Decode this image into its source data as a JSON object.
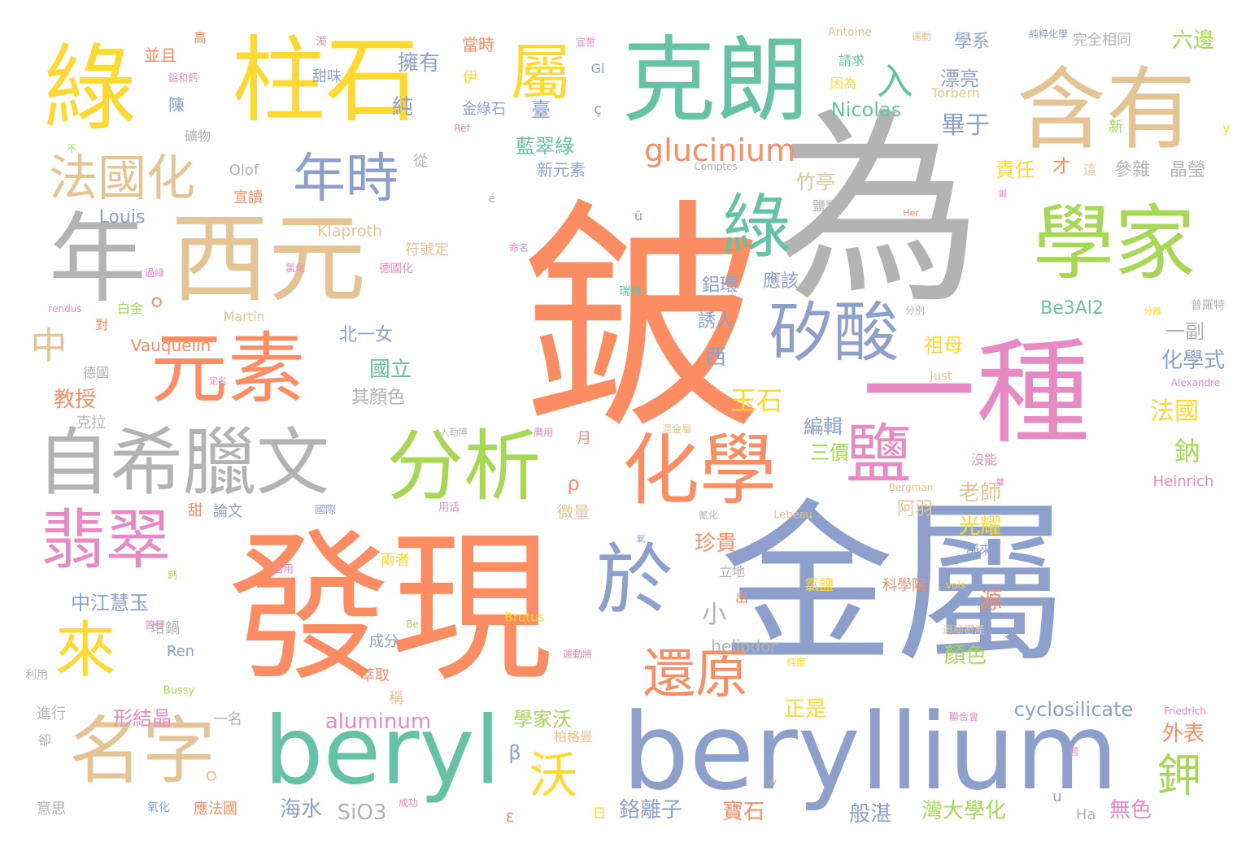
{
  "palette": {
    "orange": "#fc8d62",
    "gray": "#b3b3b3",
    "blue": "#8da0cb",
    "green": "#66c2a5",
    "pink": "#e78ac3",
    "lime": "#a6d854",
    "yellow": "#ffd92f",
    "tan": "#e5c494"
  },
  "words": [
    {
      "text": "鈹",
      "color": "orange"
    },
    {
      "text": "為",
      "color": "gray"
    },
    {
      "text": "金屬",
      "color": "blue"
    },
    {
      "text": "發現",
      "color": "orange"
    },
    {
      "text": "一種",
      "color": "pink"
    },
    {
      "text": "beryllium",
      "color": "blue"
    },
    {
      "text": "克朗",
      "color": "green"
    },
    {
      "text": "柱石",
      "color": "yellow"
    },
    {
      "text": "綠",
      "color": "yellow"
    },
    {
      "text": "含有",
      "color": "tan"
    },
    {
      "text": "西元",
      "color": "tan"
    },
    {
      "text": "年",
      "color": "gray"
    },
    {
      "text": "學家",
      "color": "lime"
    },
    {
      "text": "beryl",
      "color": "green"
    },
    {
      "text": "分析",
      "color": "lime"
    },
    {
      "text": "化學",
      "color": "orange"
    },
    {
      "text": "自希臘文",
      "color": "gray"
    },
    {
      "text": "元素",
      "color": "orange"
    },
    {
      "text": "於",
      "color": "blue"
    },
    {
      "text": "名字",
      "color": "tan"
    },
    {
      "text": "鹽",
      "color": "pink"
    },
    {
      "text": "矽酸",
      "color": "blue"
    },
    {
      "text": "翡翠",
      "color": "pink"
    },
    {
      "text": "綠",
      "color": "green"
    },
    {
      "text": "屬",
      "color": "yellow"
    },
    {
      "text": "年時",
      "color": "blue"
    },
    {
      "text": "法國化",
      "color": "tan"
    },
    {
      "text": "來",
      "color": "yellow"
    },
    {
      "text": "還原",
      "color": "orange"
    },
    {
      "text": "沃",
      "color": "yellow"
    },
    {
      "text": "鉀",
      "color": "lime"
    },
    {
      "text": "glucinium",
      "color": "orange"
    },
    {
      "text": "入",
      "color": "green"
    },
    {
      "text": "中",
      "color": "tan"
    },
    {
      "text": "。",
      "color": "orange"
    },
    {
      "text": "。",
      "color": "tan"
    },
    {
      "text": "Louis",
      "color": "blue"
    },
    {
      "text": "Vauquelin",
      "color": "orange"
    },
    {
      "text": "Nicolas",
      "color": "green"
    },
    {
      "text": "cyclosilicate",
      "color": "blue"
    },
    {
      "text": "aluminum",
      "color": "pink"
    },
    {
      "text": "heliodor",
      "color": "gray"
    },
    {
      "text": "SiO3",
      "color": "gray"
    },
    {
      "text": "Be3Al2",
      "color": "green"
    },
    {
      "text": "Klaproth",
      "color": "tan"
    },
    {
      "text": "Martin",
      "color": "tan"
    },
    {
      "text": "Olof",
      "color": "gray"
    },
    {
      "text": "Torbern",
      "color": "tan"
    },
    {
      "text": "Antoine",
      "color": "tan"
    },
    {
      "text": "Heinrich",
      "color": "pink"
    },
    {
      "text": "Alexandre",
      "color": "pink"
    },
    {
      "text": "Friedrich",
      "color": "pink"
    },
    {
      "text": "Comptes",
      "color": "gray"
    },
    {
      "text": "rendus",
      "color": "pink"
    },
    {
      "text": "Bergman",
      "color": "tan"
    },
    {
      "text": "Lebeau",
      "color": "tan"
    },
    {
      "text": "Brutus",
      "color": "yellow"
    },
    {
      "text": "Bussy",
      "color": "lime"
    },
    {
      "text": "Just",
      "color": "tan"
    },
    {
      "text": "vols",
      "color": "yellow"
    },
    {
      "text": "Ren",
      "color": "blue"
    },
    {
      "text": "Ha",
      "color": "gray"
    },
    {
      "text": "Be",
      "color": "lime"
    },
    {
      "text": "Gl",
      "color": "blue"
    },
    {
      "text": "Ref",
      "color": "pink"
    },
    {
      "text": "Her",
      "color": "orange"
    },
    {
      "text": "ç",
      "color": "blue"
    },
    {
      "text": "é",
      "color": "gray"
    },
    {
      "text": "ü",
      "color": "blue"
    },
    {
      "text": "ρ",
      "color": "orange"
    },
    {
      "text": "β",
      "color": "blue"
    },
    {
      "text": "ε",
      "color": "orange"
    },
    {
      "text": "u",
      "color": "blue"
    },
    {
      "text": "w",
      "color": "gray"
    },
    {
      "text": "y",
      "color": "yellow"
    },
    {
      "text": "P",
      "color": "yellow"
    },
    {
      "text": "擁有",
      "color": "blue"
    },
    {
      "text": "純",
      "color": "blue"
    },
    {
      "text": "臺",
      "color": "blue"
    },
    {
      "text": "藍翠綠",
      "color": "green"
    },
    {
      "text": "新元素",
      "color": "blue"
    },
    {
      "text": "金綠石",
      "color": "blue"
    },
    {
      "text": "伊",
      "color": "yellow"
    },
    {
      "text": "當時",
      "color": "orange"
    },
    {
      "text": "漂亮",
      "color": "blue"
    },
    {
      "text": "因為",
      "color": "yellow"
    },
    {
      "text": "請求",
      "color": "green"
    },
    {
      "text": "學系",
      "color": "blue"
    },
    {
      "text": "完全相同",
      "color": "gray"
    },
    {
      "text": "六邊",
      "color": "lime"
    },
    {
      "text": "畢于",
      "color": "blue"
    },
    {
      "text": "責任",
      "color": "yellow"
    },
    {
      "text": "才",
      "color": "orange"
    },
    {
      "text": "這",
      "color": "tan"
    },
    {
      "text": "參雜",
      "color": "gray"
    },
    {
      "text": "晶瑩",
      "color": "gray"
    },
    {
      "text": "新",
      "color": "lime"
    },
    {
      "text": "竹亭",
      "color": "tan"
    },
    {
      "text": "鹽類",
      "color": "gray"
    },
    {
      "text": "應該",
      "color": "blue"
    },
    {
      "text": "鋁環",
      "color": "blue"
    },
    {
      "text": "誘人",
      "color": "blue"
    },
    {
      "text": "西",
      "color": "blue"
    },
    {
      "text": "祖母",
      "color": "yellow"
    },
    {
      "text": "一副",
      "color": "gray"
    },
    {
      "text": "化學式",
      "color": "blue"
    },
    {
      "text": "法國",
      "color": "yellow"
    },
    {
      "text": "鈉",
      "color": "lime"
    },
    {
      "text": "玉石",
      "color": "yellow"
    },
    {
      "text": "編輯",
      "color": "blue"
    },
    {
      "text": "三價",
      "color": "lime"
    },
    {
      "text": "老師",
      "color": "tan"
    },
    {
      "text": "光耀",
      "color": "yellow"
    },
    {
      "text": "阿羽",
      "color": "tan"
    },
    {
      "text": "珍貴",
      "color": "orange"
    },
    {
      "text": "小",
      "color": "gray"
    },
    {
      "text": "微量",
      "color": "tan"
    },
    {
      "text": "源",
      "color": "orange"
    },
    {
      "text": "顏色",
      "color": "lime"
    },
    {
      "text": "正是",
      "color": "yellow"
    },
    {
      "text": "學家沃",
      "color": "lime"
    },
    {
      "text": "外表",
      "color": "orange"
    },
    {
      "text": "柏格曼",
      "color": "tan"
    },
    {
      "text": "般湛",
      "color": "blue"
    },
    {
      "text": "灣大學化",
      "color": "lime"
    },
    {
      "text": "寶石",
      "color": "orange"
    },
    {
      "text": "鉻離子",
      "color": "blue"
    },
    {
      "text": "海水",
      "color": "blue"
    },
    {
      "text": "無色",
      "color": "pink"
    },
    {
      "text": "北一女",
      "color": "blue"
    },
    {
      "text": "國立",
      "color": "green"
    },
    {
      "text": "其顏色",
      "color": "gray"
    },
    {
      "text": "教授",
      "color": "orange"
    },
    {
      "text": "中江慧玉",
      "color": "blue"
    },
    {
      "text": "形結晶",
      "color": "pink"
    },
    {
      "text": "成分",
      "color": "blue"
    },
    {
      "text": "萃取",
      "color": "orange"
    },
    {
      "text": "稱",
      "color": "tan"
    },
    {
      "text": "一名",
      "color": "gray"
    },
    {
      "text": "坩鍋",
      "color": "gray"
    },
    {
      "text": "論文",
      "color": "blue"
    },
    {
      "text": "甜",
      "color": "orange"
    },
    {
      "text": "月",
      "color": "orange"
    },
    {
      "text": "陳",
      "color": "blue"
    },
    {
      "text": "礦物",
      "color": "gray"
    },
    {
      "text": "甜味",
      "color": "blue"
    },
    {
      "text": "從",
      "color": "gray"
    },
    {
      "text": "並且",
      "color": "orange"
    },
    {
      "text": "高",
      "color": "orange"
    },
    {
      "text": "白金",
      "color": "lime"
    },
    {
      "text": "對",
      "color": "orange"
    },
    {
      "text": "德國",
      "color": "gray"
    },
    {
      "text": "克拉",
      "color": "gray"
    },
    {
      "text": "進行",
      "color": "gray"
    },
    {
      "text": "卻",
      "color": "gray"
    },
    {
      "text": "意思",
      "color": "gray"
    },
    {
      "text": "宣讀",
      "color": "orange"
    },
    {
      "text": "符號定",
      "color": "tan"
    },
    {
      "text": "德國化",
      "color": "pink"
    },
    {
      "text": "氯化",
      "color": "pink"
    },
    {
      "text": "過綠",
      "color": "pink"
    },
    {
      "text": "瑞典",
      "color": "green"
    },
    {
      "text": "分別",
      "color": "gray"
    },
    {
      "text": "普羅特",
      "color": "gray"
    },
    {
      "text": "分離",
      "color": "yellow"
    },
    {
      "text": "科學院",
      "color": "orange"
    },
    {
      "text": "氯鹽",
      "color": "yellow"
    },
    {
      "text": "稱來",
      "color": "blue"
    },
    {
      "text": "沒能",
      "color": "pink"
    },
    {
      "text": "兩者",
      "color": "yellow"
    },
    {
      "text": "出",
      "color": "orange"
    },
    {
      "text": "立地",
      "color": "gray"
    },
    {
      "text": "用活",
      "color": "pink"
    },
    {
      "text": "國際",
      "color": "blue"
    },
    {
      "text": "沿用",
      "color": "pink"
    },
    {
      "text": "利用",
      "color": "gray"
    },
    {
      "text": "氧化",
      "color": "blue"
    },
    {
      "text": "應法國",
      "color": "orange"
    },
    {
      "text": "日",
      "color": "yellow"
    },
    {
      "text": "成功",
      "color": "pink"
    },
    {
      "text": "運動將",
      "color": "pink"
    },
    {
      "text": "純度",
      "color": "yellow"
    },
    {
      "text": "過秘密產",
      "color": "tan"
    },
    {
      "text": "聯合會",
      "color": "pink"
    },
    {
      "text": "不",
      "color": "lime"
    },
    {
      "text": "運動",
      "color": "tan"
    },
    {
      "text": "純粹化學",
      "color": "blue"
    },
    {
      "text": "宣誓",
      "color": "pink"
    },
    {
      "text": "濁",
      "color": "pink"
    },
    {
      "text": "鋁和鈣",
      "color": "pink"
    },
    {
      "text": "命名",
      "color": "pink"
    },
    {
      "text": "定名",
      "color": "pink"
    },
    {
      "text": "人勒博",
      "color": "gray"
    },
    {
      "text": "廣用",
      "color": "pink"
    },
    {
      "text": "混金屬",
      "color": "tan"
    },
    {
      "text": "氰化",
      "color": "gray"
    },
    {
      "text": "曾經",
      "color": "pink"
    },
    {
      "text": "曾",
      "color": "pink"
    },
    {
      "text": "鈣",
      "color": "lime"
    },
    {
      "text": "鍛",
      "color": "pink"
    },
    {
      "text": "氣",
      "color": "blue"
    },
    {
      "text": "雙",
      "color": "pink"
    }
  ]
}
